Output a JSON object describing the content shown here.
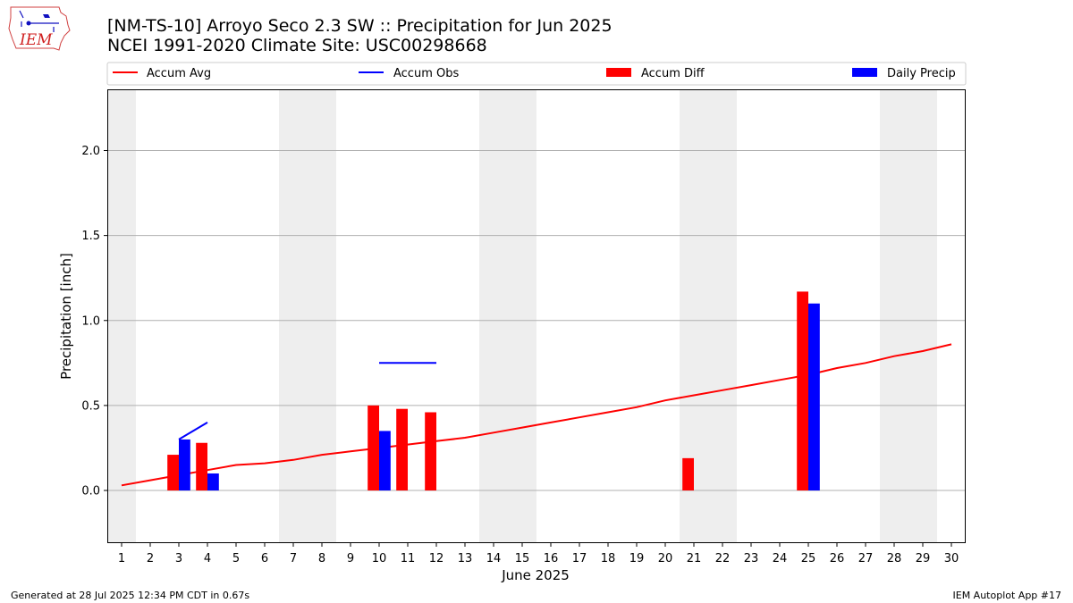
{
  "header": {
    "title_line1": "[NM-TS-10] Arroyo Seco 2.3 SW :: Precipitation for Jun 2025",
    "title_line2": "NCEI 1991-2020 Climate Site: USC00298668",
    "logo_text": "IEM"
  },
  "footer": {
    "left": "Generated at 28 Jul 2025 12:34 PM CDT in 0.67s",
    "right": "IEM Autoplot App #17"
  },
  "colors": {
    "avg": "#ff0000",
    "obs": "#0000ff",
    "weekend_shade": "#eeeeee",
    "grid": "#b0b0b0"
  },
  "chart_data": {
    "type": "bar",
    "xlabel": "June 2025",
    "ylabel": "Precipitation [inch]",
    "ylim": [
      -0.31,
      2.36
    ],
    "yticks": [
      0.0,
      0.5,
      1.0,
      1.5,
      2.0
    ],
    "ytick_labels": [
      "0.0",
      "0.5",
      "1.0",
      "1.5",
      "2.0"
    ],
    "xlim": [
      0.5,
      30.5
    ],
    "grid": "horizontal",
    "legend_position": "top",
    "x": [
      1,
      2,
      3,
      4,
      5,
      6,
      7,
      8,
      9,
      10,
      11,
      12,
      13,
      14,
      15,
      16,
      17,
      18,
      19,
      20,
      21,
      22,
      23,
      24,
      25,
      26,
      27,
      28,
      29,
      30
    ],
    "x_tick_labels": [
      "1",
      "2",
      "3",
      "4",
      "5",
      "6",
      "7",
      "8",
      "9",
      "10",
      "11",
      "12",
      "13",
      "14",
      "15",
      "16",
      "17",
      "18",
      "19",
      "20",
      "21",
      "22",
      "23",
      "24",
      "25",
      "26",
      "27",
      "28",
      "29",
      "30"
    ],
    "shaded_days": [
      1,
      7,
      8,
      14,
      15,
      21,
      22,
      28,
      29
    ],
    "legend": [
      "Accum Avg",
      "Accum Obs",
      "Accum Diff",
      "Daily Precip"
    ],
    "accum_avg": [
      0.03,
      0.06,
      0.09,
      0.12,
      0.15,
      0.16,
      0.18,
      0.21,
      0.23,
      0.25,
      0.27,
      0.29,
      0.31,
      0.34,
      0.37,
      0.4,
      0.43,
      0.46,
      0.49,
      0.53,
      0.56,
      0.59,
      0.62,
      0.65,
      0.68,
      0.72,
      0.75,
      0.79,
      0.82,
      0.86
    ],
    "accum_obs_segments": [
      {
        "x": [
          3,
          4
        ],
        "y": [
          0.3,
          0.4
        ]
      },
      {
        "x": [
          10,
          11,
          12
        ],
        "y": [
          0.75,
          0.75,
          0.75
        ]
      }
    ],
    "accum_diff": [
      {
        "day": 3,
        "value": 0.21
      },
      {
        "day": 4,
        "value": 0.28
      },
      {
        "day": 10,
        "value": 0.5
      },
      {
        "day": 11,
        "value": 0.48
      },
      {
        "day": 12,
        "value": 0.46
      },
      {
        "day": 21,
        "value": 0.19
      },
      {
        "day": 25,
        "value": 1.17
      }
    ],
    "daily_precip": [
      {
        "day": 3,
        "value": 0.3
      },
      {
        "day": 4,
        "value": 0.1
      },
      {
        "day": 10,
        "value": 0.35
      },
      {
        "day": 25,
        "value": 1.1
      }
    ]
  }
}
